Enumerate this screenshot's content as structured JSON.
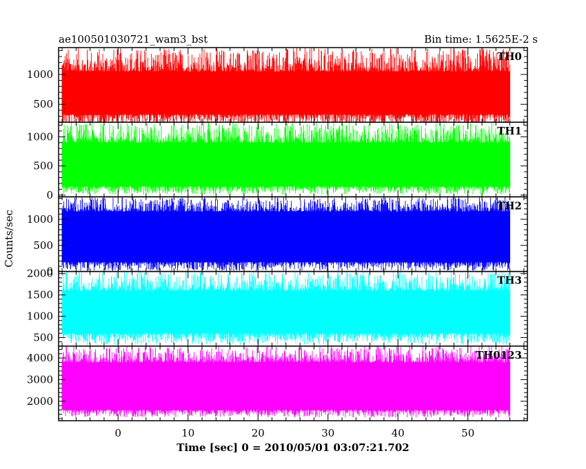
{
  "chart_data": {
    "type": "line",
    "title": "ae100501030721_wam3_bst",
    "subtitle": "Bin time: 1.5625E-2 s",
    "xlabel": "Time [sec] 0 = 2010/05/01 03:07:21.702",
    "ylabel": "Counts/sec",
    "xlim": [
      -8.5,
      58.5
    ],
    "x_range": [
      -8,
      56
    ],
    "x_ticks": [
      0,
      10,
      20,
      30,
      40,
      50
    ],
    "grid": false,
    "panels": [
      {
        "name": "TH0",
        "color": "#ff0000",
        "ylim": [
          200,
          1450
        ],
        "y_ticks": [
          500,
          1000
        ],
        "band": [
          330,
          1050
        ],
        "baseline": 100,
        "peak": 1450,
        "dip": 120
      },
      {
        "name": "TH1",
        "color": "#00ff00",
        "ylim": [
          -30,
          1250
        ],
        "y_ticks": [
          0,
          500,
          1000
        ],
        "band": [
          150,
          900
        ],
        "baseline": 80,
        "peak": 1250,
        "dip": 10
      },
      {
        "name": "TH2",
        "color": "#0000ff",
        "ylim": [
          0,
          1430
        ],
        "y_ticks": [
          0,
          500,
          1000
        ],
        "band": [
          180,
          1150
        ],
        "baseline": 100,
        "peak": 1430,
        "dip": 10
      },
      {
        "name": "TH3",
        "color": "#00ffff",
        "ylim": [
          300,
          2050
        ],
        "y_ticks": [
          500,
          1000,
          1500,
          2000
        ],
        "band": [
          600,
          1600
        ],
        "baseline": 450,
        "peak": 2050,
        "dip": 330
      },
      {
        "name": "TH0123",
        "color": "#ff00ff",
        "ylim": [
          1100,
          4550
        ],
        "y_ticks": [
          2000,
          3000,
          4000
        ],
        "band": [
          1600,
          3800
        ],
        "baseline": 1450,
        "peak": 4550,
        "dip": 1250
      }
    ]
  }
}
